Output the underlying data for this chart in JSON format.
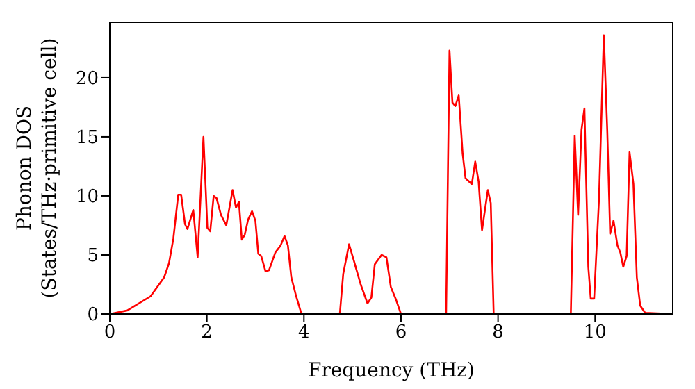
{
  "chart_data": {
    "type": "line",
    "xlabel": "Frequency (THz)",
    "ylabel": "Phonon DOS\n(States/THz·primitive cell)",
    "xlim": [
      0,
      11.6
    ],
    "ylim": [
      0,
      24.7
    ],
    "xticks": [
      0,
      2,
      4,
      6,
      8,
      10
    ],
    "yticks": [
      0,
      5,
      10,
      15,
      20
    ],
    "marker": "none",
    "line_style": "solid",
    "series": [
      {
        "color": "#ff0000",
        "x": [
          0,
          0.36,
          0.84,
          1.12,
          1.22,
          1.31,
          1.41,
          1.47,
          1.55,
          1.6,
          1.66,
          1.72,
          1.81,
          1.93,
          2.01,
          2.07,
          2.14,
          2.2,
          2.29,
          2.4,
          2.53,
          2.6,
          2.66,
          2.72,
          2.78,
          2.85,
          2.93,
          3.0,
          3.06,
          3.12,
          3.21,
          3.28,
          3.41,
          3.52,
          3.6,
          3.67,
          3.74,
          3.84,
          3.95,
          4.74,
          4.81,
          4.93,
          5.03,
          5.17,
          5.31,
          5.39,
          5.46,
          5.6,
          5.7,
          5.79,
          5.89,
          6.0,
          6.93,
          7.0,
          7.06,
          7.12,
          7.19,
          7.27,
          7.33,
          7.46,
          7.53,
          7.6,
          7.67,
          7.79,
          7.85,
          7.91,
          9.5,
          9.58,
          9.65,
          9.72,
          9.78,
          9.86,
          9.91,
          9.98,
          10.08,
          10.18,
          10.25,
          10.31,
          10.38,
          10.46,
          10.52,
          10.58,
          10.65,
          10.71,
          10.79,
          10.86,
          10.93,
          11.03,
          11.6
        ],
        "values": [
          0,
          0.3,
          1.5,
          3.1,
          4.3,
          6.4,
          10.1,
          10.1,
          7.6,
          7.2,
          8.0,
          8.8,
          4.8,
          15.0,
          7.3,
          7.0,
          10.0,
          9.8,
          8.4,
          7.5,
          10.5,
          9.0,
          9.5,
          6.3,
          6.7,
          8.0,
          8.7,
          7.9,
          5.1,
          4.9,
          3.6,
          3.7,
          5.2,
          5.8,
          6.6,
          5.8,
          3.1,
          1.5,
          0,
          0,
          3.4,
          5.9,
          4.5,
          2.5,
          0.9,
          1.4,
          4.2,
          5.0,
          4.8,
          2.3,
          1.3,
          0,
          0,
          22.3,
          17.9,
          17.6,
          18.5,
          13.6,
          11.5,
          11.0,
          12.9,
          11.2,
          7.1,
          10.5,
          9.4,
          0,
          0,
          15.1,
          8.4,
          15.6,
          17.4,
          4.0,
          1.3,
          1.3,
          9.7,
          23.6,
          15.6,
          6.8,
          7.9,
          5.8,
          5.2,
          4.0,
          4.9,
          13.7,
          11.0,
          3.1,
          0.7,
          0.1,
          0
        ]
      }
    ]
  }
}
